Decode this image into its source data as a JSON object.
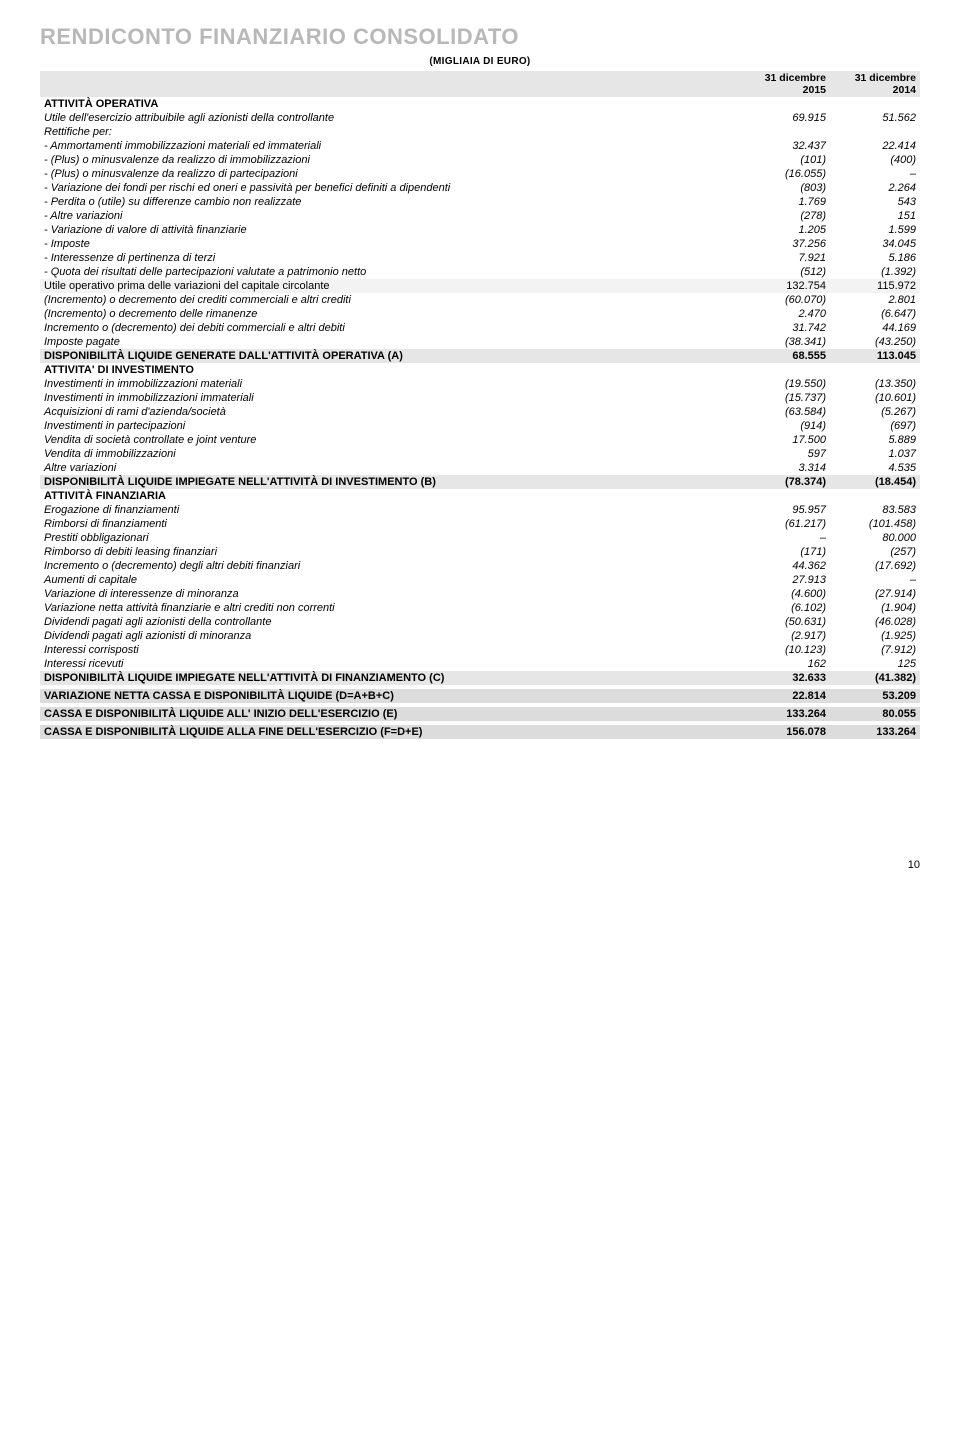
{
  "page": {
    "title": "RENDICONTO FINANZIARIO CONSOLIDATO",
    "subtitle": "(MIGLIAIA DI EURO)",
    "pageNumber": "10"
  },
  "colors": {
    "title": "#b8b8b8",
    "header_bg": "#e6e6e6",
    "subtotal_bg": "#f3f3f3",
    "block_bg": "#e6e6e6",
    "mega_bg": "#dcdcdc"
  },
  "columns": {
    "c1": "31 dicembre 2015",
    "c2": "31 dicembre 2014"
  },
  "rows": [
    {
      "k": "section",
      "label": "ATTIVITÀ OPERATIVA",
      "v1": "",
      "v2": ""
    },
    {
      "k": "italic",
      "label": "Utile dell'esercizio attribuibile agli azionisti della controllante",
      "v1": "69.915",
      "v2": "51.562"
    },
    {
      "k": "italic",
      "label": "Rettifiche per:",
      "v1": "",
      "v2": ""
    },
    {
      "k": "italic",
      "label": "- Ammortamenti immobilizzazioni materiali ed immateriali",
      "v1": "32.437",
      "v2": "22.414"
    },
    {
      "k": "italic",
      "label": "- (Plus) o minusvalenze da realizzo di immobilizzazioni",
      "v1": "(101)",
      "v2": "(400)"
    },
    {
      "k": "italic",
      "label": "- (Plus) o minusvalenze da realizzo di partecipazioni",
      "v1": "(16.055)",
      "v2": "–"
    },
    {
      "k": "italic",
      "label": "- Variazione dei fondi per rischi ed oneri e passività per benefici definiti a dipendenti",
      "v1": "(803)",
      "v2": "2.264"
    },
    {
      "k": "italic",
      "label": "- Perdita o (utile) su differenze cambio non realizzate",
      "v1": "1.769",
      "v2": "543"
    },
    {
      "k": "italic",
      "label": "- Altre variazioni",
      "v1": "(278)",
      "v2": "151"
    },
    {
      "k": "italic",
      "label": "- Variazione di valore di attività finanziarie",
      "v1": "1.205",
      "v2": "1.599"
    },
    {
      "k": "italic",
      "label": "- Imposte",
      "v1": "37.256",
      "v2": "34.045"
    },
    {
      "k": "italic",
      "label": "- Interessenze di pertinenza di terzi",
      "v1": "7.921",
      "v2": "5.186"
    },
    {
      "k": "italic",
      "label": "- Quota dei risultati delle partecipazioni valutate a patrimonio netto",
      "v1": "(512)",
      "v2": "(1.392)"
    },
    {
      "k": "subtotal",
      "label": "Utile operativo prima delle variazioni del capitale circolante",
      "v1": "132.754",
      "v2": "115.972"
    },
    {
      "k": "italic",
      "label": "(Incremento) o decremento dei crediti commerciali e altri crediti",
      "v1": "(60.070)",
      "v2": "2.801"
    },
    {
      "k": "italic",
      "label": "(Incremento) o decremento delle rimanenze",
      "v1": "2.470",
      "v2": "(6.647)"
    },
    {
      "k": "italic",
      "label": "Incremento o (decremento) dei debiti commerciali e altri debiti",
      "v1": "31.742",
      "v2": "44.169"
    },
    {
      "k": "italic",
      "label": "Imposte pagate",
      "v1": "(38.341)",
      "v2": "(43.250)"
    },
    {
      "k": "block",
      "label": "DISPONIBILITÀ LIQUIDE GENERATE DALL'ATTIVITÀ OPERATIVA (A)",
      "v1": "68.555",
      "v2": "113.045"
    },
    {
      "k": "section",
      "label": "ATTIVITA' DI INVESTIMENTO",
      "v1": "",
      "v2": ""
    },
    {
      "k": "italic",
      "label": "Investimenti in immobilizzazioni materiali",
      "v1": "(19.550)",
      "v2": "(13.350)"
    },
    {
      "k": "italic",
      "label": "Investimenti in immobilizzazioni immateriali",
      "v1": "(15.737)",
      "v2": "(10.601)"
    },
    {
      "k": "italic",
      "label": "Acquisizioni di rami d'azienda/società",
      "v1": "(63.584)",
      "v2": "(5.267)"
    },
    {
      "k": "italic",
      "label": "Investimenti in partecipazioni",
      "v1": "(914)",
      "v2": "(697)"
    },
    {
      "k": "italic",
      "label": "Vendita di società controllate e joint venture",
      "v1": "17.500",
      "v2": "5.889"
    },
    {
      "k": "italic",
      "label": "Vendita di immobilizzazioni",
      "v1": "597",
      "v2": "1.037"
    },
    {
      "k": "italic",
      "label": "Altre variazioni",
      "v1": "3.314",
      "v2": "4.535"
    },
    {
      "k": "block",
      "label": "DISPONIBILITÀ LIQUIDE IMPIEGATE NELL'ATTIVITÀ DI INVESTIMENTO (B)",
      "v1": "(78.374)",
      "v2": "(18.454)"
    },
    {
      "k": "section",
      "label": "ATTIVITÀ FINANZIARIA",
      "v1": "",
      "v2": ""
    },
    {
      "k": "italic",
      "label": "Erogazione di finanziamenti",
      "v1": "95.957",
      "v2": "83.583"
    },
    {
      "k": "italic",
      "label": "Rimborsi di finanziamenti",
      "v1": "(61.217)",
      "v2": "(101.458)"
    },
    {
      "k": "italic",
      "label": "Prestiti obbligazionari",
      "v1": "–",
      "v2": "80.000"
    },
    {
      "k": "italic",
      "label": "Rimborso di debiti leasing finanziari",
      "v1": "(171)",
      "v2": "(257)"
    },
    {
      "k": "italic",
      "label": "Incremento o (decremento) degli altri debiti finanziari",
      "v1": "44.362",
      "v2": "(17.692)"
    },
    {
      "k": "italic",
      "label": "Aumenti di capitale",
      "v1": "27.913",
      "v2": "–"
    },
    {
      "k": "italic",
      "label": "Variazione di interessenze di minoranza",
      "v1": "(4.600)",
      "v2": "(27.914)"
    },
    {
      "k": "italic",
      "label": "Variazione netta attività finanziarie e altri crediti non correnti",
      "v1": "(6.102)",
      "v2": "(1.904)"
    },
    {
      "k": "italic",
      "label": "Dividendi pagati agli azionisti della controllante",
      "v1": "(50.631)",
      "v2": "(46.028)"
    },
    {
      "k": "italic",
      "label": "Dividendi pagati agli azionisti di minoranza",
      "v1": "(2.917)",
      "v2": "(1.925)"
    },
    {
      "k": "italic",
      "label": "Interessi corrisposti",
      "v1": "(10.123)",
      "v2": "(7.912)"
    },
    {
      "k": "italic",
      "label": "Interessi ricevuti",
      "v1": "162",
      "v2": "125"
    },
    {
      "k": "block",
      "label": "DISPONIBILITÀ LIQUIDE IMPIEGATE NELL'ATTIVITÀ DI FINANZIAMENTO (C)",
      "v1": "32.633",
      "v2": "(41.382)"
    },
    {
      "k": "spacer"
    },
    {
      "k": "mega",
      "label": "VARIAZIONE NETTA CASSA E DISPONIBILITÀ LIQUIDE (D=A+B+C)",
      "v1": "22.814",
      "v2": "53.209"
    },
    {
      "k": "spacer"
    },
    {
      "k": "mega",
      "label": "CASSA E DISPONIBILITÀ LIQUIDE ALL' INIZIO DELL'ESERCIZIO (E)",
      "v1": "133.264",
      "v2": "80.055"
    },
    {
      "k": "spacer"
    },
    {
      "k": "mega",
      "label": "CASSA E DISPONIBILITÀ LIQUIDE ALLA FINE DELL'ESERCIZIO (F=D+E)",
      "v1": "156.078",
      "v2": "133.264"
    }
  ]
}
